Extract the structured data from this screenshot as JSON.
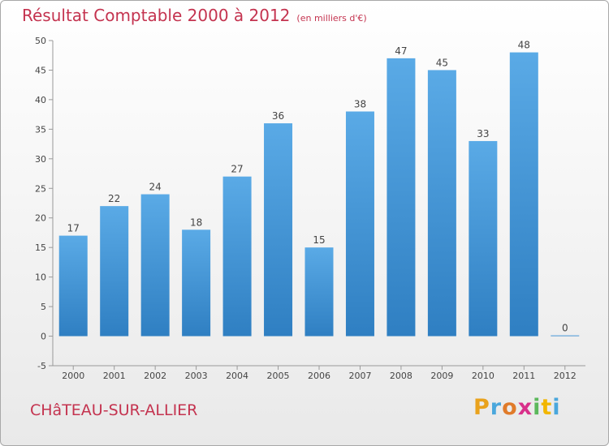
{
  "chart_data": {
    "type": "bar",
    "title": "Résultat Comptable 2000 à 2012",
    "subtitle": "(en milliers d'€)",
    "categories": [
      "2000",
      "2001",
      "2002",
      "2003",
      "2004",
      "2005",
      "2006",
      "2007",
      "2008",
      "2009",
      "2010",
      "2011",
      "2012"
    ],
    "values": [
      17,
      22,
      24,
      18,
      27,
      36,
      15,
      38,
      47,
      45,
      33,
      48,
      0
    ],
    "ylim": [
      -5,
      50
    ],
    "yticks": [
      -5,
      0,
      5,
      10,
      15,
      20,
      25,
      30,
      35,
      40,
      45,
      50
    ],
    "xlabel": "",
    "ylabel": "",
    "grid": false,
    "bar_color": "#3a8fd4"
  },
  "footer": {
    "town": "CHâTEAU-SUR-ALLIER"
  },
  "logo": {
    "letters": [
      "P",
      "r",
      "o",
      "x",
      "i",
      "t",
      "i"
    ],
    "colors": [
      "#e9a21c",
      "#4aa7dc",
      "#e07b2a",
      "#d8308a",
      "#5cb85c",
      "#f2b600",
      "#4aa7dc"
    ]
  }
}
